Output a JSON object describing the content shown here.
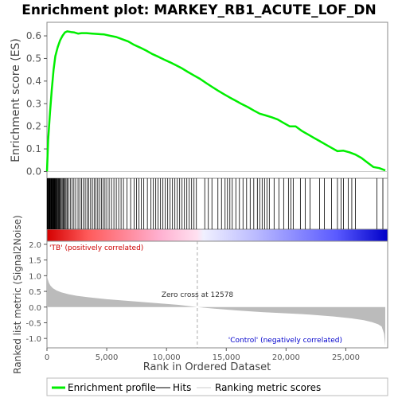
{
  "chart_data": {
    "type": "line",
    "title": "Enrichment plot: MARKEY_RB1_ACUTE_LOF_DN",
    "xlabel": "Rank in Ordered Dataset",
    "ylabel_top": "Enrichment score (ES)",
    "ylabel_bottom": "Ranked list metric (Signal2Noise)",
    "xlim": [
      0,
      28500
    ],
    "x_ticks": [
      "0",
      "5,000",
      "10,000",
      "15,000",
      "20,000",
      "25,000"
    ],
    "x_tick_values": [
      0,
      5000,
      10000,
      15000,
      20000,
      25000
    ],
    "es_ylim": [
      -0.03,
      0.66
    ],
    "es_ticks": [
      "0.0",
      "0.1",
      "0.2",
      "0.3",
      "0.4",
      "0.5",
      "0.6"
    ],
    "es_tick_values": [
      0.0,
      0.1,
      0.2,
      0.3,
      0.4,
      0.5,
      0.6
    ],
    "metric_ylim": [
      -1.3,
      2.1
    ],
    "metric_ticks": [
      "2.0",
      "1.5",
      "1.0",
      "0.5",
      "0.0",
      "-0.5",
      "-1.0"
    ],
    "metric_tick_values": [
      2.0,
      1.5,
      1.0,
      0.5,
      0.0,
      -0.5,
      -1.0
    ],
    "es_curve": {
      "x": [
        0,
        100,
        250,
        400,
        550,
        700,
        900,
        1100,
        1300,
        1500,
        1700,
        2000,
        2300,
        2600,
        2900,
        3300,
        3800,
        4300,
        4800,
        5300,
        5800,
        6300,
        6800,
        7300,
        7800,
        8300,
        8800,
        9300,
        9800,
        10300,
        10800,
        11300,
        11800,
        12300,
        12800,
        13300,
        13800,
        14300,
        14800,
        15300,
        15800,
        16300,
        16800,
        17300,
        17800,
        18300,
        18800,
        19300,
        19800,
        20300,
        20800,
        21300,
        21800,
        22300,
        22800,
        23300,
        23800,
        24300,
        24800,
        25300,
        25800,
        26300,
        26800,
        27300,
        27800,
        28300
      ],
      "y": [
        0.0,
        0.14,
        0.26,
        0.36,
        0.45,
        0.51,
        0.55,
        0.58,
        0.6,
        0.615,
        0.62,
        0.617,
        0.615,
        0.61,
        0.612,
        0.612,
        0.61,
        0.608,
        0.606,
        0.6,
        0.595,
        0.585,
        0.575,
        0.56,
        0.548,
        0.535,
        0.52,
        0.508,
        0.495,
        0.483,
        0.47,
        0.456,
        0.44,
        0.425,
        0.41,
        0.392,
        0.375,
        0.358,
        0.342,
        0.327,
        0.313,
        0.298,
        0.285,
        0.27,
        0.256,
        0.248,
        0.24,
        0.23,
        0.215,
        0.2,
        0.2,
        0.18,
        0.165,
        0.15,
        0.135,
        0.12,
        0.105,
        0.09,
        0.092,
        0.085,
        0.075,
        0.06,
        0.04,
        0.02,
        0.015,
        0.005
      ]
    },
    "hits": [
      20,
      60,
      100,
      140,
      180,
      220,
      260,
      300,
      340,
      380,
      420,
      460,
      500,
      540,
      580,
      620,
      660,
      700,
      740,
      780,
      820,
      880,
      940,
      1000,
      1060,
      1120,
      1200,
      1280,
      1360,
      1440,
      1520,
      1600,
      1700,
      1800,
      1950,
      2100,
      2250,
      2400,
      2600,
      2750,
      2900,
      3050,
      3200,
      3350,
      3500,
      3650,
      3800,
      3950,
      4100,
      4250,
      4400,
      4550,
      4700,
      4850,
      5000,
      5200,
      5400,
      5600,
      5800,
      6000,
      6200,
      6400,
      6700,
      7000,
      7300,
      7500,
      7700,
      7900,
      8100,
      8400,
      8700,
      8900,
      9100,
      9300,
      9500,
      9700,
      9900,
      10100,
      10300,
      10500,
      10700,
      10900,
      11100,
      11300,
      11500,
      11700,
      11900,
      12100,
      12300,
      12500,
      13200,
      13500,
      13800,
      14300,
      14600,
      14900,
      15100,
      15300,
      15500,
      15800,
      16100,
      16400,
      16700,
      17000,
      17300,
      17600,
      17800,
      18000,
      18200,
      18400,
      18600,
      19000,
      19400,
      19800,
      20200,
      20400,
      20600,
      21200,
      21600,
      22000,
      22800,
      23200,
      23800,
      24300,
      24600,
      24800,
      25200,
      25500,
      25800,
      27600,
      28100
    ],
    "metric_curve": {
      "x": [
        0,
        50,
        150,
        300,
        500,
        800,
        1200,
        1800,
        2500,
        3500,
        5000,
        7000,
        9000,
        11000,
        12578,
        14000,
        16000,
        18000,
        20000,
        22000,
        24000,
        25500,
        26500,
        27200,
        27700,
        28000,
        28200,
        28300
      ],
      "y": [
        1.05,
        0.9,
        0.78,
        0.68,
        0.6,
        0.53,
        0.47,
        0.41,
        0.36,
        0.31,
        0.25,
        0.19,
        0.13,
        0.07,
        0.0,
        -0.05,
        -0.11,
        -0.16,
        -0.2,
        -0.24,
        -0.3,
        -0.36,
        -0.42,
        -0.48,
        -0.55,
        -0.62,
        -0.85,
        -1.25
      ]
    },
    "annotations": {
      "positive": "'TB' (positively correlated)",
      "negative": "'Control' (negatively correlated)",
      "zero_cross": "Zero cross at 12578",
      "zero_cross_value": 12578
    },
    "legend": [
      "Enrichment profile",
      "Hits",
      "Ranking metric scores"
    ],
    "colors": {
      "es_line": "#00ee00",
      "hits": "#000000",
      "metric_fill": "#bbbbbb",
      "positive_text": "#cc0000",
      "negative_text": "#0000cc",
      "heat_red": "#ff0000",
      "heat_blue": "#0000ff",
      "zero_line": "#aaaaaa"
    }
  }
}
